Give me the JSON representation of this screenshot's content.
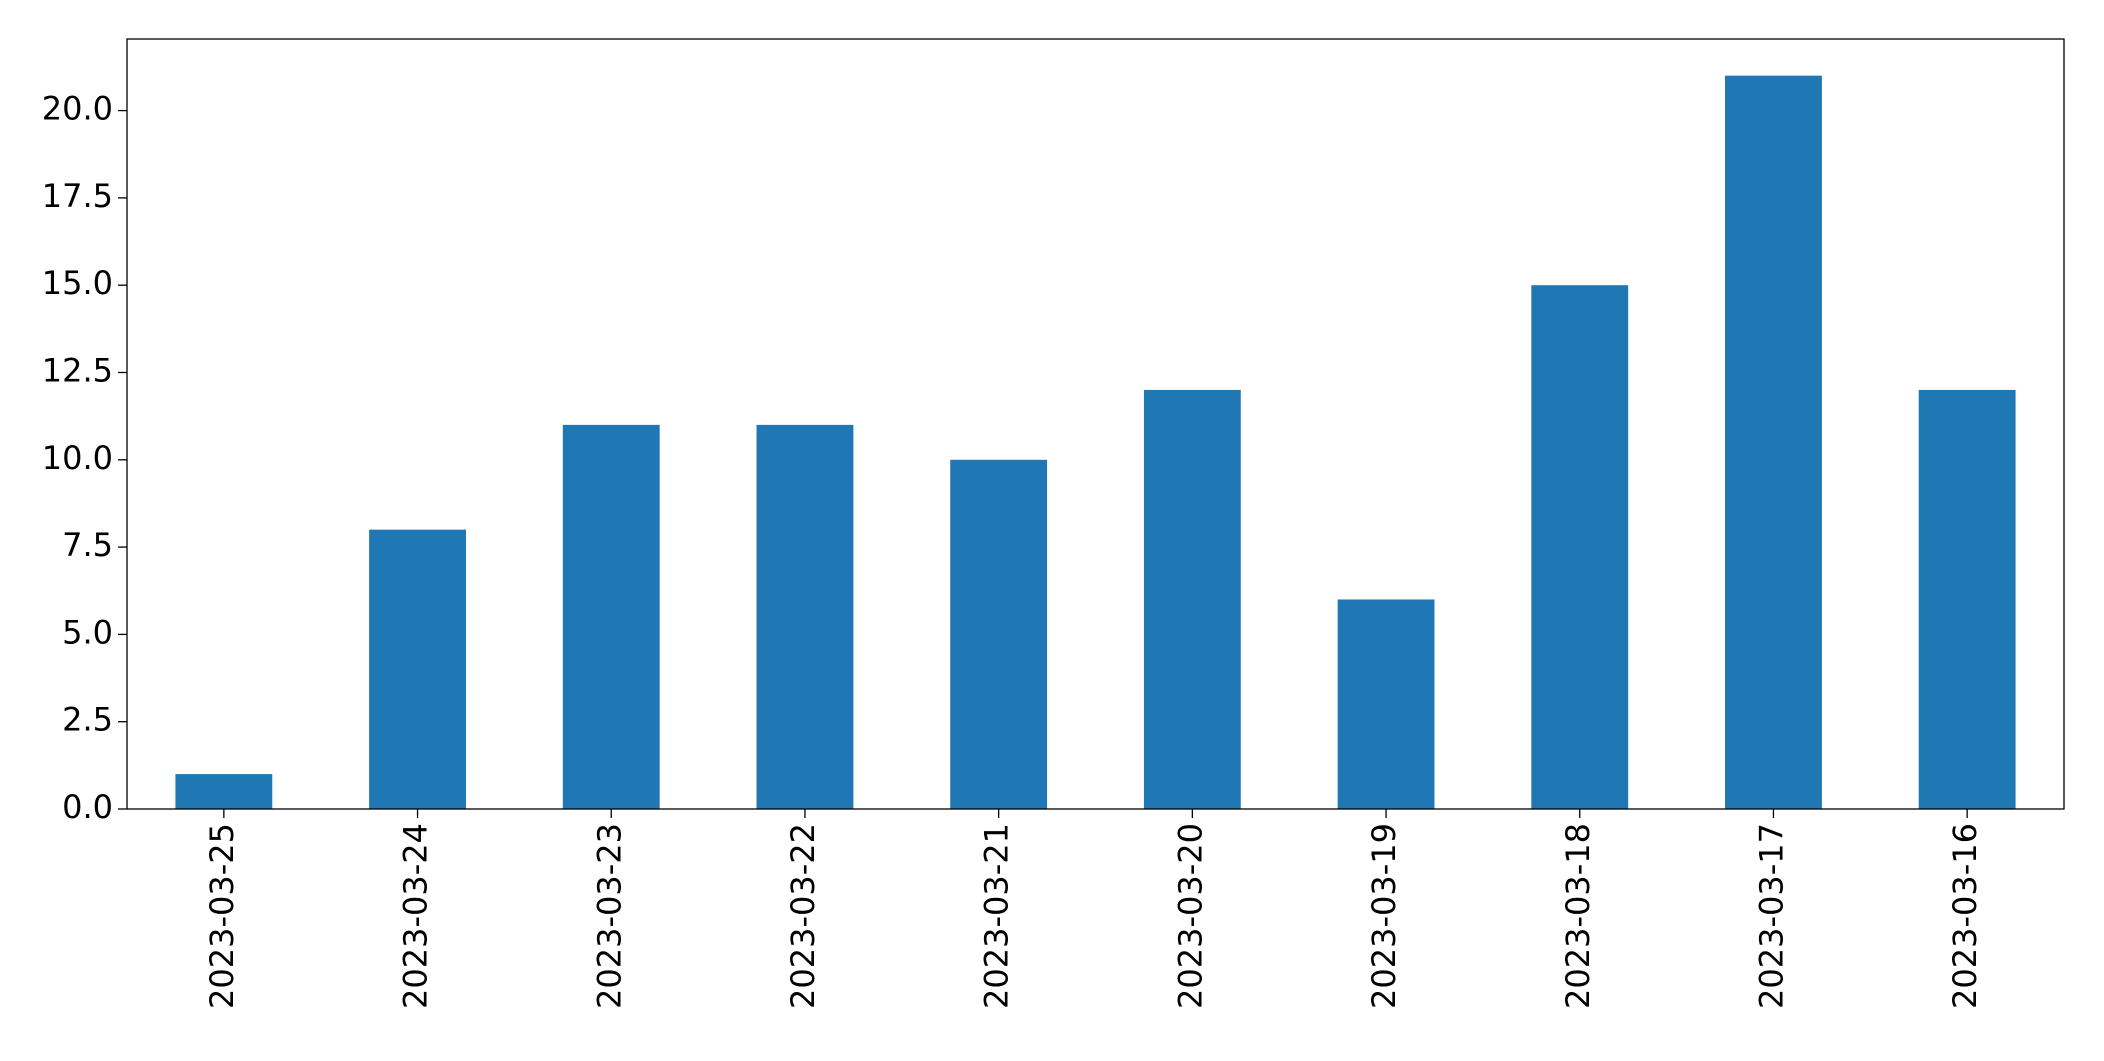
{
  "chart_data": {
    "type": "bar",
    "categories": [
      "2023-03-25",
      "2023-03-24",
      "2023-03-23",
      "2023-03-22",
      "2023-03-21",
      "2023-03-20",
      "2023-03-19",
      "2023-03-18",
      "2023-03-17",
      "2023-03-16"
    ],
    "values": [
      1,
      8,
      11,
      11,
      10,
      12,
      6,
      15,
      21,
      12
    ],
    "color": "#1f77b4",
    "ylim": [
      0,
      22.05
    ],
    "yticks": [
      {
        "value": 0,
        "label": "0.0"
      },
      2.5,
      {
        "value": 5,
        "label": "5.0"
      },
      7.5,
      {
        "value": 10,
        "label": "10.0"
      },
      12.5,
      {
        "value": 15,
        "label": "15.0"
      },
      17.5,
      {
        "value": 20,
        "label": "20.0"
      }
    ],
    "grid": false
  }
}
